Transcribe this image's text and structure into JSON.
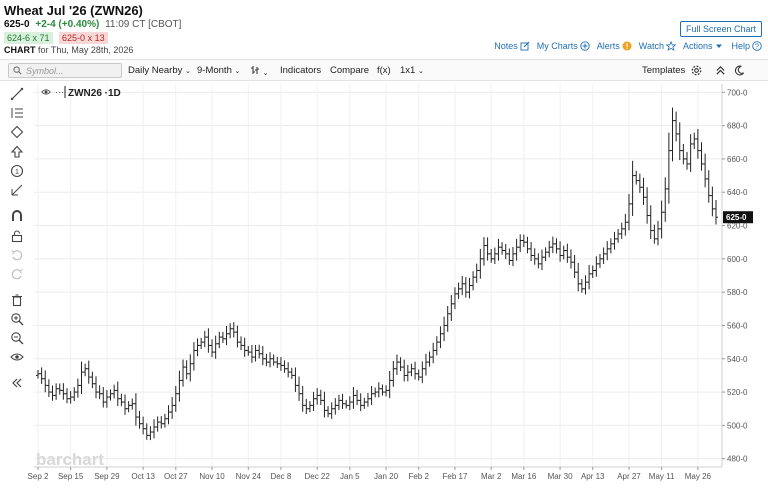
{
  "header": {
    "title": "Wheat Jul '26 (ZWN26)",
    "last": "625-0",
    "change": "+2-4 (+0.40%)",
    "time": "11:09 CT [CBOT]",
    "bid": "624-6 x 71",
    "ask": "625-0 x 13",
    "chart_label": "CHART",
    "chart_for": "for Thu, May 28th, 2026",
    "fullscreen_label": "Full Screen Chart",
    "links": [
      "Notes",
      "My Charts",
      "Alerts",
      "Watch",
      "Actions",
      "Help"
    ]
  },
  "toolbar": {
    "search_placeholder": "Symbol...",
    "items": [
      "Daily Nearby",
      "9-Month",
      "Indicators",
      "Compare",
      "f(x)",
      "1x1"
    ],
    "templates_label": "Templates"
  },
  "symbol_legend": "ZWN26 ·1D",
  "watermark": "barchart",
  "last_price_tag": "625-0",
  "colors": {
    "accent": "#1f6fb2",
    "up": "#2a8a3b",
    "down": "#b02a2a",
    "bars": "#222222"
  },
  "chart_data": {
    "type": "ohlc",
    "title": "Wheat Jul '26 (ZWN26)",
    "ylim": [
      475,
      705
    ],
    "yticks": [
      480,
      500,
      520,
      540,
      560,
      580,
      600,
      620,
      640,
      660,
      680,
      700
    ],
    "ytick_labels": [
      "480-0",
      "500-0",
      "520-0",
      "540-0",
      "560-0",
      "580-0",
      "600-0",
      "620-0",
      "640-0",
      "660-0",
      "680-0",
      "700-0"
    ],
    "xtick_labels": [
      "Sep 2",
      "Sep 15",
      "Sep 29",
      "Oct 13",
      "Oct 27",
      "Nov 10",
      "Nov 24",
      "Dec 8",
      "Dec 22",
      "Jan 5",
      "Jan 20",
      "Feb 2",
      "Feb 17",
      "Mar 2",
      "Mar 16",
      "Mar 30",
      "Apr 13",
      "Apr 27",
      "May 11",
      "May 26"
    ],
    "xtick_bar_index": [
      0,
      9,
      19,
      29,
      38,
      48,
      58,
      67,
      77,
      86,
      96,
      105,
      115,
      125,
      134,
      144,
      153,
      163,
      172,
      182
    ],
    "closes": [
      531,
      528,
      524,
      520,
      518,
      522,
      521,
      519,
      516,
      517,
      520,
      524,
      532,
      534,
      529,
      525,
      520,
      519,
      514,
      517,
      519,
      521,
      516,
      514,
      510,
      512,
      513,
      505,
      501,
      498,
      494,
      496,
      499,
      502,
      501,
      504,
      508,
      512,
      519,
      527,
      535,
      531,
      537,
      545,
      548,
      550,
      553,
      548,
      544,
      549,
      553,
      552,
      555,
      558,
      556,
      550,
      548,
      545,
      544,
      541,
      545,
      543,
      540,
      538,
      540,
      538,
      537,
      536,
      534,
      532,
      530,
      524,
      519,
      512,
      510,
      512,
      516,
      518,
      515,
      509,
      507,
      510,
      512,
      515,
      513,
      512,
      514,
      518,
      515,
      512,
      514,
      516,
      519,
      520,
      522,
      520,
      521,
      527,
      534,
      538,
      535,
      530,
      532,
      534,
      531,
      529,
      534,
      538,
      541,
      545,
      550,
      555,
      560,
      567,
      573,
      579,
      582,
      585,
      580,
      584,
      589,
      593,
      600,
      608,
      603,
      600,
      603,
      607,
      605,
      603,
      599,
      603,
      607,
      611,
      610,
      606,
      602,
      600,
      597,
      601,
      604,
      607,
      609,
      606,
      602,
      605,
      601,
      598,
      592,
      585,
      582,
      586,
      591,
      593,
      597,
      600,
      603,
      606,
      609,
      612,
      615,
      618,
      622,
      633,
      650,
      647,
      643,
      637,
      626,
      617,
      612,
      618,
      628,
      642,
      665,
      683,
      675,
      665,
      660,
      657,
      669,
      672,
      665,
      657,
      648,
      638,
      630,
      625
    ]
  }
}
